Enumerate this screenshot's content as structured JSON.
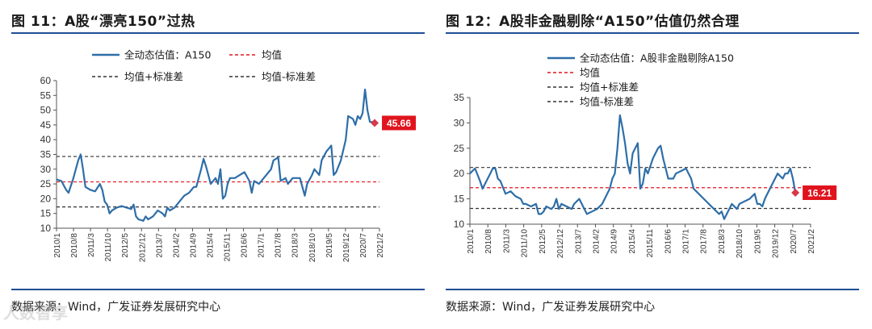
{
  "chart_data": [
    {
      "type": "line",
      "figure_label": "图 11：A股“漂亮150”过热",
      "title": "A股“漂亮150”过热",
      "source": "数据来源：Wind，广发证券发展研究中心",
      "ylim": [
        10,
        60
      ],
      "yticks": [
        10,
        15,
        20,
        25,
        30,
        35,
        40,
        45,
        50,
        55,
        60
      ],
      "xticks": [
        "2010/1",
        "2010/8",
        "2011/3",
        "2011/10",
        "2012/5",
        "2012/12",
        "2013/7",
        "2014/2",
        "2014/9",
        "2015/4",
        "2015/11",
        "2016/6",
        "2017/1",
        "2017/8",
        "2018/3",
        "2018/10",
        "2019/5",
        "2019/12",
        "2020/7",
        "2021/2"
      ],
      "legend": {
        "series": "全动态估值：A150",
        "mean": "均值",
        "upper": "均值+标准差",
        "lower": "均值-标准差"
      },
      "mean": 25.7,
      "upper": 34.3,
      "lower": 17.2,
      "last_value_label": "45.66",
      "series": [
        {
          "name": "全动态估值：A150",
          "x_months": 134,
          "points": [
            [
              0,
              26.5
            ],
            [
              2,
              26
            ],
            [
              4,
              23
            ],
            [
              5,
              22
            ],
            [
              7,
              27
            ],
            [
              8,
              30
            ],
            [
              9,
              33
            ],
            [
              10,
              35
            ],
            [
              11,
              30
            ],
            [
              12,
              24
            ],
            [
              14,
              23
            ],
            [
              16,
              22.5
            ],
            [
              18,
              25
            ],
            [
              19,
              23
            ],
            [
              20,
              19
            ],
            [
              21,
              18
            ],
            [
              22,
              15
            ],
            [
              23,
              16
            ],
            [
              25,
              17
            ],
            [
              27,
              17.5
            ],
            [
              29,
              17
            ],
            [
              31,
              16.5
            ],
            [
              32,
              18
            ],
            [
              33,
              14
            ],
            [
              34,
              13
            ],
            [
              36,
              12.5
            ],
            [
              37,
              14
            ],
            [
              38,
              13
            ],
            [
              40,
              14
            ],
            [
              42,
              16
            ],
            [
              44,
              15
            ],
            [
              45,
              14
            ],
            [
              46,
              17
            ],
            [
              47,
              16
            ],
            [
              49,
              17
            ],
            [
              51,
              19
            ],
            [
              53,
              21
            ],
            [
              55,
              22
            ],
            [
              57,
              24
            ],
            [
              58,
              24
            ],
            [
              60,
              30
            ],
            [
              61,
              33.5
            ],
            [
              62,
              31
            ],
            [
              64,
              25
            ],
            [
              66,
              27
            ],
            [
              67,
              25
            ],
            [
              68,
              30
            ],
            [
              69,
              20
            ],
            [
              70,
              21
            ],
            [
              71,
              25
            ],
            [
              72,
              27
            ],
            [
              74,
              27
            ],
            [
              76,
              28
            ],
            [
              78,
              29
            ],
            [
              80,
              26
            ],
            [
              81,
              22
            ],
            [
              82,
              26
            ],
            [
              84,
              25
            ],
            [
              86,
              27
            ],
            [
              88,
              29
            ],
            [
              89,
              30
            ],
            [
              90,
              33
            ],
            [
              92,
              34
            ],
            [
              93,
              26
            ],
            [
              95,
              27
            ],
            [
              96,
              25
            ],
            [
              98,
              27
            ],
            [
              100,
              27
            ],
            [
              101,
              27
            ],
            [
              102,
              24
            ],
            [
              103,
              21
            ],
            [
              104,
              25
            ],
            [
              106,
              28
            ],
            [
              107,
              30
            ],
            [
              109,
              28
            ],
            [
              110,
              33
            ],
            [
              112,
              36
            ],
            [
              113,
              37
            ],
            [
              114,
              38
            ],
            [
              115,
              28
            ],
            [
              116,
              29
            ],
            [
              118,
              33
            ],
            [
              120,
              40
            ],
            [
              121,
              48
            ],
            [
              123,
              47
            ],
            [
              124,
              45
            ],
            [
              125,
              48
            ],
            [
              126,
              47
            ],
            [
              127,
              49
            ],
            [
              128,
              57
            ],
            [
              129,
              50
            ],
            [
              130,
              46
            ],
            [
              131,
              46
            ],
            [
              132,
              45.66
            ]
          ]
        }
      ]
    },
    {
      "type": "line",
      "figure_label": "图 12：A股非金融剔除“A150”估值仍然合理",
      "title": "A股非金融剔除“A150”估值仍然合理",
      "source": "数据来源：Wind，广发证券发展研究中心",
      "ylim": [
        10,
        35
      ],
      "yticks": [
        10,
        15,
        20,
        25,
        30,
        35
      ],
      "xticks": [
        "2010/1",
        "2010/8",
        "2011/3",
        "2011/10",
        "2012/5",
        "2012/12",
        "2013/7",
        "2014/2",
        "2014/9",
        "2015/4",
        "2015/11",
        "2016/6",
        "2017/1",
        "2017/8",
        "2018/3",
        "2018/10",
        "2019/5",
        "2019/12",
        "2020/7",
        "2021/2"
      ],
      "legend": {
        "series": "全动态估值：A股非金融剔除A150",
        "mean": "均值",
        "upper": "均值+标准差",
        "lower": "均值-标准差"
      },
      "mean": 17.2,
      "upper": 21.2,
      "lower": 13.1,
      "last_value_label": "16.21",
      "series": [
        {
          "name": "全动态估值：A股非金融剔除A150",
          "x_months": 134,
          "points": [
            [
              0,
              20
            ],
            [
              2,
              21
            ],
            [
              4,
              18.5
            ],
            [
              5,
              17
            ],
            [
              7,
              19
            ],
            [
              8,
              20
            ],
            [
              9,
              21
            ],
            [
              10,
              21
            ],
            [
              11,
              19
            ],
            [
              12,
              18.5
            ],
            [
              14,
              16
            ],
            [
              16,
              16.5
            ],
            [
              18,
              15.5
            ],
            [
              20,
              15
            ],
            [
              21,
              14
            ],
            [
              22,
              14
            ],
            [
              24,
              13.5
            ],
            [
              26,
              14
            ],
            [
              27,
              12
            ],
            [
              28,
              12
            ],
            [
              29,
              12.5
            ],
            [
              30,
              13.5
            ],
            [
              32,
              13
            ],
            [
              33,
              13.5
            ],
            [
              34,
              15
            ],
            [
              35,
              13
            ],
            [
              36,
              14
            ],
            [
              38,
              13.5
            ],
            [
              40,
              13
            ],
            [
              41,
              14
            ],
            [
              43,
              15
            ],
            [
              44,
              14
            ],
            [
              45,
              13
            ],
            [
              46,
              12
            ],
            [
              48,
              12.5
            ],
            [
              50,
              13
            ],
            [
              52,
              14
            ],
            [
              54,
              16
            ],
            [
              55,
              17
            ],
            [
              56,
              19
            ],
            [
              57,
              20
            ],
            [
              58,
              25
            ],
            [
              59,
              31.5
            ],
            [
              60,
              29
            ],
            [
              61,
              26
            ],
            [
              62,
              22
            ],
            [
              63,
              20
            ],
            [
              64,
              24
            ],
            [
              66,
              26
            ],
            [
              67,
              17
            ],
            [
              68,
              18
            ],
            [
              69,
              21
            ],
            [
              70,
              20
            ],
            [
              72,
              23
            ],
            [
              74,
              25
            ],
            [
              75,
              25.5
            ],
            [
              76,
              23
            ],
            [
              77,
              21
            ],
            [
              78,
              19
            ],
            [
              80,
              19
            ],
            [
              81,
              20
            ],
            [
              83,
              20.5
            ],
            [
              85,
              21
            ],
            [
              86,
              20
            ],
            [
              87,
              19
            ],
            [
              88,
              17
            ],
            [
              90,
              16
            ],
            [
              92,
              15
            ],
            [
              94,
              14
            ],
            [
              96,
              13
            ],
            [
              98,
              12
            ],
            [
              99,
              12.5
            ],
            [
              100,
              11
            ],
            [
              101,
              12
            ],
            [
              102,
              13
            ],
            [
              103,
              14
            ],
            [
              105,
              13
            ],
            [
              106,
              14
            ],
            [
              108,
              14.5
            ],
            [
              110,
              15
            ],
            [
              112,
              16
            ],
            [
              113,
              14
            ],
            [
              114,
              14
            ],
            [
              115,
              13.5
            ],
            [
              116,
              15
            ],
            [
              118,
              17
            ],
            [
              120,
              19
            ],
            [
              121,
              20
            ],
            [
              123,
              19
            ],
            [
              124,
              20
            ],
            [
              125,
              20
            ],
            [
              126,
              21
            ],
            [
              127,
              19
            ],
            [
              128,
              16.21
            ]
          ]
        }
      ]
    }
  ],
  "watermark": "人数智享"
}
